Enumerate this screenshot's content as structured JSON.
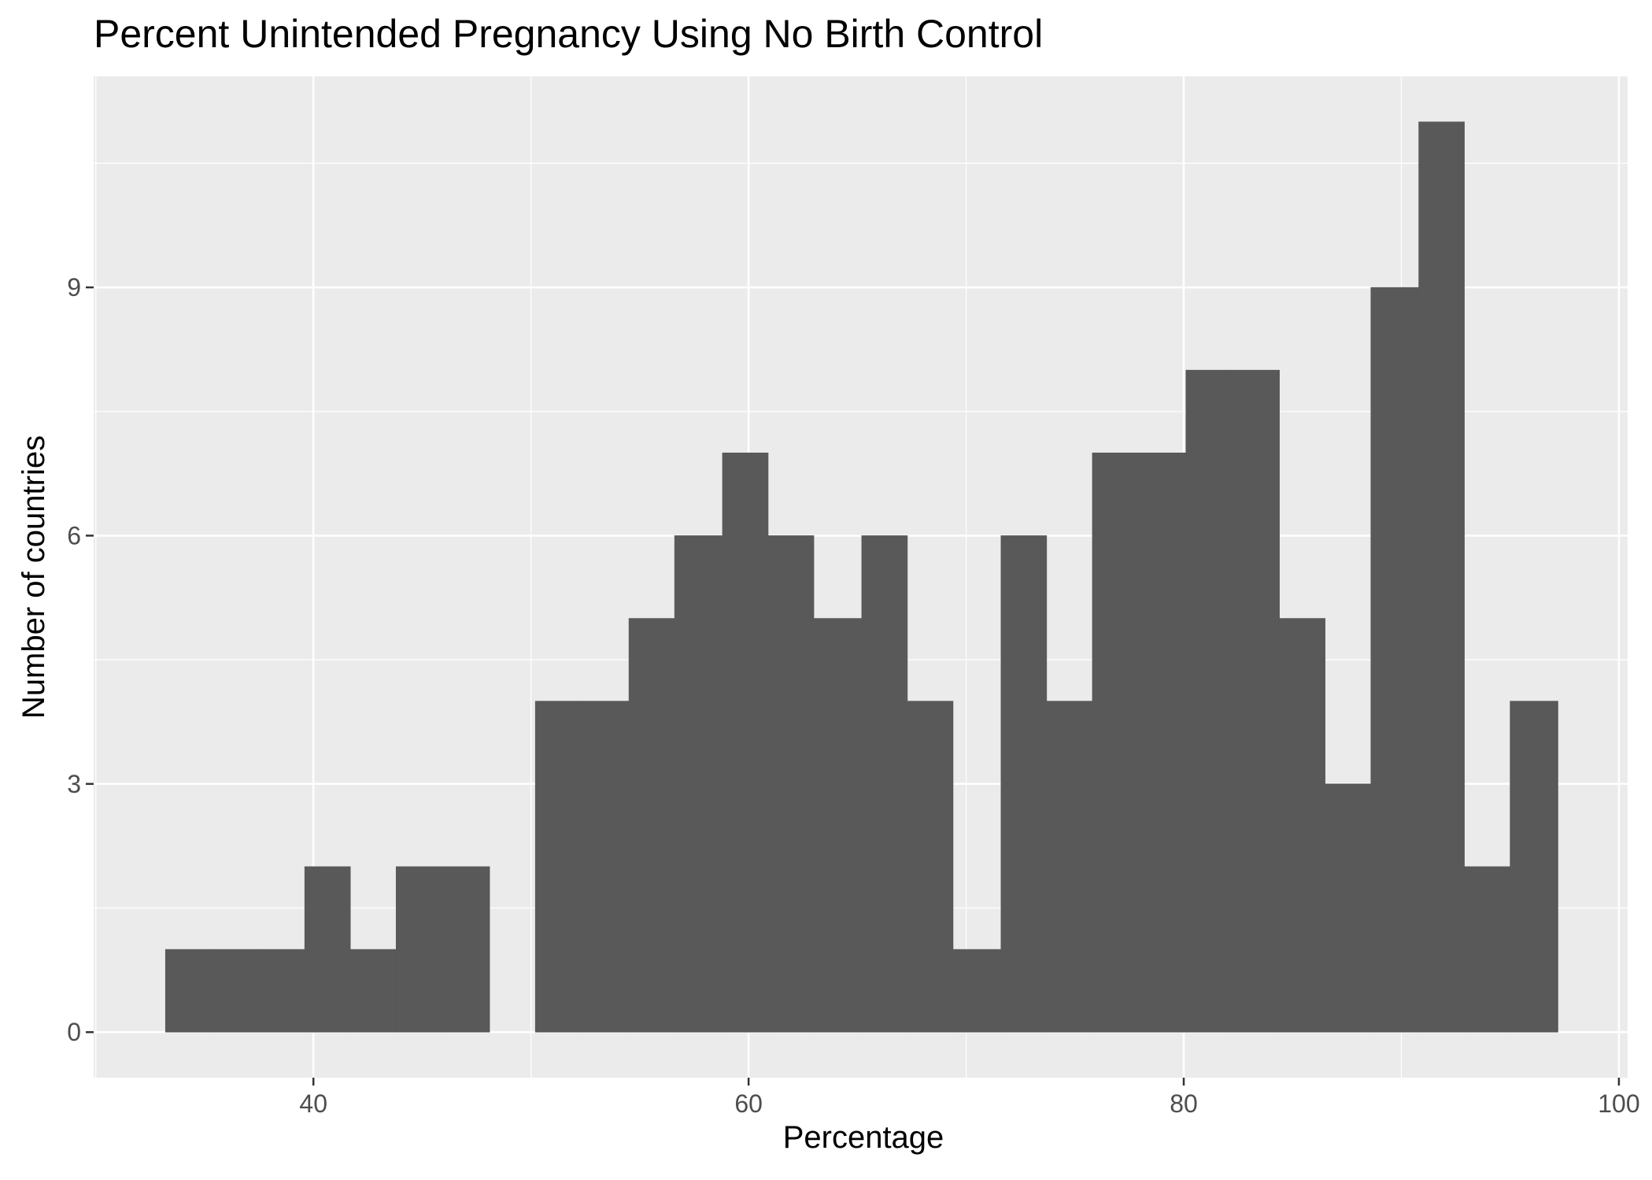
{
  "chart_data": {
    "type": "bar",
    "title": "Percent Unintended Pregnancy Using No Birth Control",
    "xlabel": "Percentage",
    "ylabel": "Number of countries",
    "bin_width": 2.13,
    "bins": [
      {
        "start": 33.2,
        "end": 35.3,
        "count": 1
      },
      {
        "start": 35.3,
        "end": 37.4,
        "count": 1
      },
      {
        "start": 37.4,
        "end": 39.6,
        "count": 1
      },
      {
        "start": 39.6,
        "end": 41.7,
        "count": 2
      },
      {
        "start": 41.7,
        "end": 43.8,
        "count": 1
      },
      {
        "start": 43.8,
        "end": 46.0,
        "count": 2
      },
      {
        "start": 46.0,
        "end": 48.1,
        "count": 2
      },
      {
        "start": 48.1,
        "end": 50.2,
        "count": 0
      },
      {
        "start": 50.2,
        "end": 52.4,
        "count": 4
      },
      {
        "start": 52.4,
        "end": 54.5,
        "count": 4
      },
      {
        "start": 54.5,
        "end": 56.6,
        "count": 5
      },
      {
        "start": 56.6,
        "end": 58.8,
        "count": 6
      },
      {
        "start": 58.8,
        "end": 60.9,
        "count": 7
      },
      {
        "start": 60.9,
        "end": 63.0,
        "count": 6
      },
      {
        "start": 63.0,
        "end": 65.2,
        "count": 5
      },
      {
        "start": 65.2,
        "end": 67.3,
        "count": 6
      },
      {
        "start": 67.3,
        "end": 69.4,
        "count": 4
      },
      {
        "start": 69.4,
        "end": 71.6,
        "count": 1
      },
      {
        "start": 71.6,
        "end": 73.7,
        "count": 6
      },
      {
        "start": 73.7,
        "end": 75.8,
        "count": 4
      },
      {
        "start": 75.8,
        "end": 78.0,
        "count": 7
      },
      {
        "start": 78.0,
        "end": 80.1,
        "count": 7
      },
      {
        "start": 80.1,
        "end": 82.2,
        "count": 8
      },
      {
        "start": 82.2,
        "end": 84.4,
        "count": 8
      },
      {
        "start": 84.4,
        "end": 86.5,
        "count": 5
      },
      {
        "start": 86.5,
        "end": 88.6,
        "count": 3
      },
      {
        "start": 88.6,
        "end": 90.8,
        "count": 9
      },
      {
        "start": 90.8,
        "end": 92.9,
        "count": 11
      },
      {
        "start": 92.9,
        "end": 95.0,
        "count": 2
      },
      {
        "start": 95.0,
        "end": 97.2,
        "count": 4
      }
    ],
    "xlim": [
      29.9,
      100.4
    ],
    "ylim": [
      -0.55,
      11.55
    ],
    "x_ticks": [
      {
        "value": 40,
        "label": "40"
      },
      {
        "value": 60,
        "label": "60"
      },
      {
        "value": 80,
        "label": "80"
      },
      {
        "value": 100,
        "label": "100"
      }
    ],
    "y_ticks": [
      {
        "value": 0,
        "label": "0"
      },
      {
        "value": 3,
        "label": "3"
      },
      {
        "value": 6,
        "label": "6"
      },
      {
        "value": 9,
        "label": "9"
      }
    ],
    "x_minor": [
      30,
      50,
      70,
      90
    ],
    "y_minor": [
      1.5,
      4.5,
      7.5,
      10.5
    ],
    "grid": true,
    "legend": "none",
    "colors": {
      "bar_fill": "#595959",
      "panel_background": "#ebebeb",
      "grid_major": "#ffffff",
      "grid_minor": "#ffffff",
      "tick_text": "#4d4d4d",
      "tick_mark": "#333333",
      "text": "#000000"
    }
  }
}
